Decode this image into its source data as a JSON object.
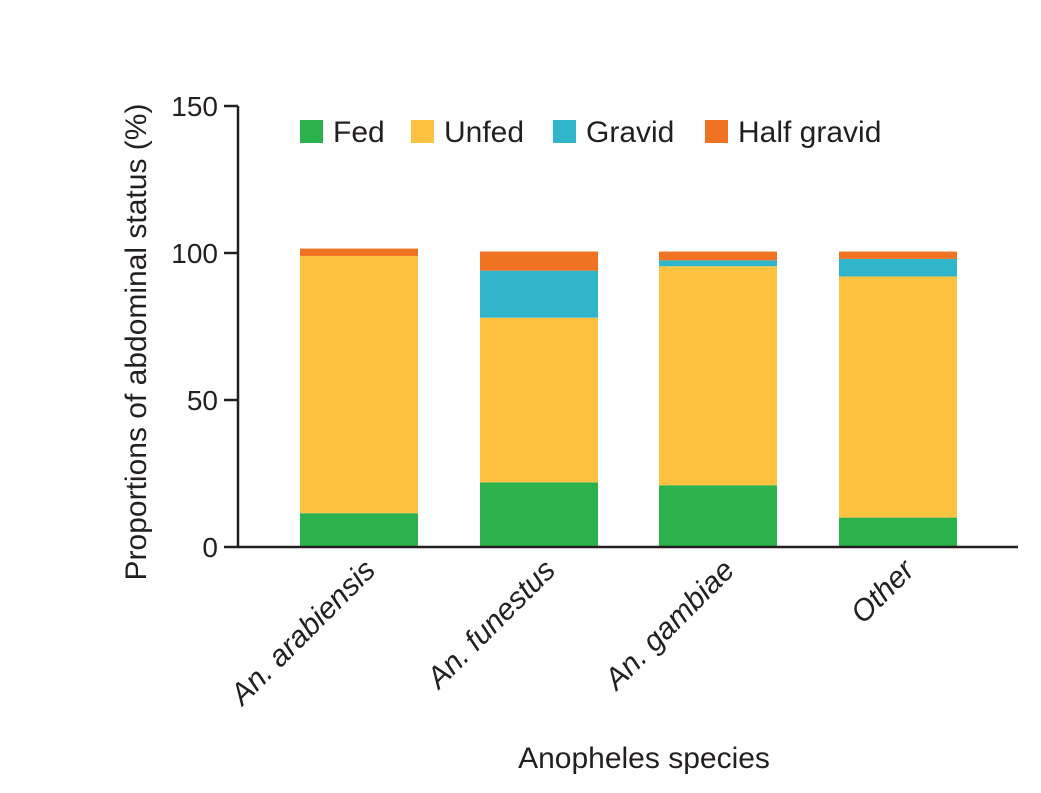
{
  "chart_data": {
    "type": "bar",
    "stacked": true,
    "title": "",
    "xlabel": "Anopheles species",
    "ylabel": "Proportions of abdominal status (%)",
    "ylim": [
      0,
      150
    ],
    "yticks": [
      0,
      50,
      100,
      150
    ],
    "grid": false,
    "legend_position": "top",
    "categories": [
      "An. arabiensis",
      "An. funestus",
      "An. gambiae",
      "Other"
    ],
    "series": [
      {
        "name": "Fed",
        "color": "#2bb24c",
        "values": [
          11.5,
          22,
          21,
          10
        ]
      },
      {
        "name": "Unfed",
        "color": "#fdc340",
        "values": [
          87.5,
          56,
          74.5,
          82
        ]
      },
      {
        "name": "Gravid",
        "color": "#2fb6cb",
        "values": [
          0,
          16,
          2,
          6
        ]
      },
      {
        "name": "Half gravid",
        "color": "#f07223",
        "values": [
          2.5,
          6.5,
          3,
          2.5
        ]
      }
    ]
  }
}
